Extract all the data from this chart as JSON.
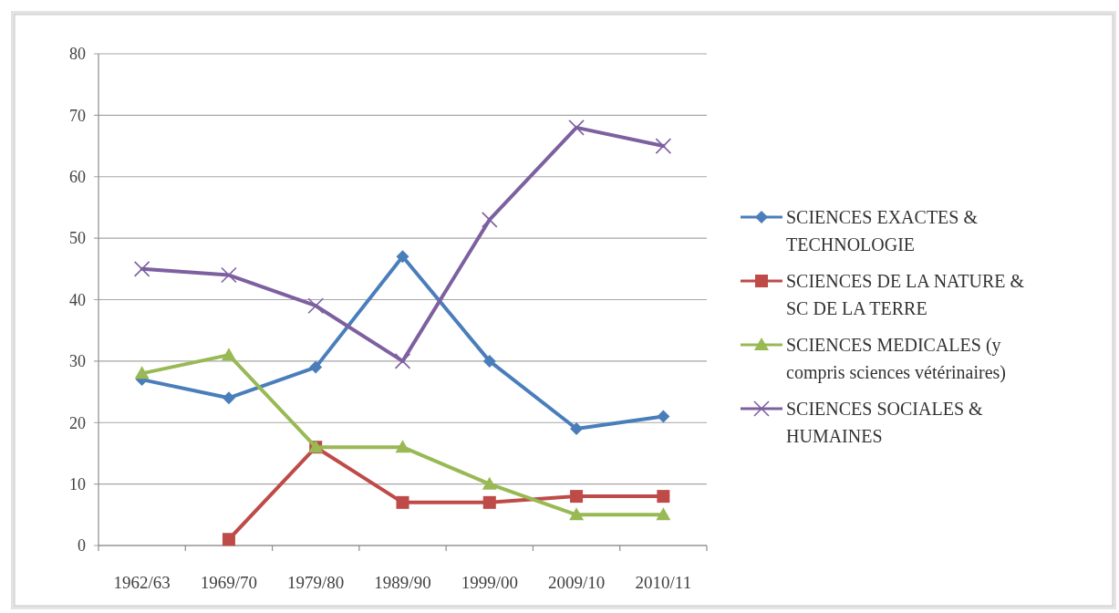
{
  "chart_data": {
    "type": "line",
    "categories": [
      "1962/63",
      "1969/70",
      "1979/80",
      "1989/90",
      "1999/00",
      "2009/10",
      "2010/11"
    ],
    "ylim": [
      0,
      80
    ],
    "yticks": [
      0,
      10,
      20,
      30,
      40,
      50,
      60,
      70,
      80
    ],
    "grid": "y",
    "legend": "right",
    "series": [
      {
        "name": "SCIENCES EXACTES & TECHNOLOGIE",
        "color": "#4a7ebb",
        "marker": "diamond",
        "values": [
          27,
          24,
          29,
          47,
          30,
          19,
          21
        ]
      },
      {
        "name": "SCIENCES DE LA NATURE & SC DE LA TERRE",
        "color": "#be4b48",
        "marker": "square",
        "values": [
          null,
          1,
          16,
          7,
          7,
          8,
          8
        ]
      },
      {
        "name": "SCIENCES MEDICALES (y compris sciences vétérinaires)",
        "color": "#98b954",
        "marker": "triangle",
        "values": [
          28,
          31,
          16,
          16,
          10,
          5,
          5
        ]
      },
      {
        "name": "SCIENCES SOCIALES & HUMAINES",
        "color": "#7d60a0",
        "marker": "cross",
        "values": [
          45,
          44,
          39,
          30,
          53,
          68,
          65
        ]
      }
    ]
  }
}
